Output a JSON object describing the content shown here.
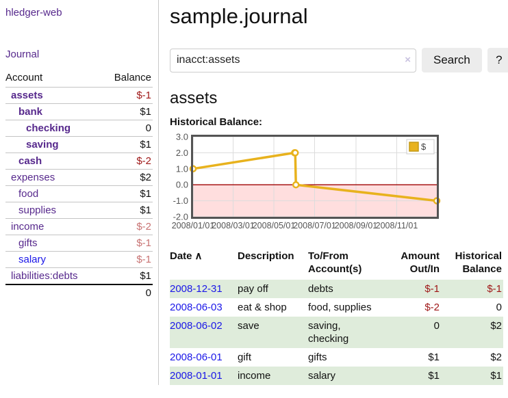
{
  "app": {
    "title": "hledger-web",
    "nav_journal": "Journal"
  },
  "colors": {
    "purple": "#56288c",
    "blue": "#1a16e8",
    "neg-strong": "#9e1616",
    "neg-soft": "#c87373",
    "row-green": "#dfecdb",
    "chart-line": "#e8b21d",
    "chart-neg": "#ffdede",
    "zero": "#a00000",
    "btn-bg": "#ececec"
  },
  "sidebar": {
    "headers": {
      "account": "Account",
      "balance": "Balance"
    },
    "accounts": [
      {
        "name": "assets",
        "balance": "$-1",
        "indent": 1,
        "bold": true,
        "neg": "strong"
      },
      {
        "name": "bank",
        "balance": "$1",
        "indent": 2,
        "bold": true,
        "neg": ""
      },
      {
        "name": "checking",
        "balance": "0",
        "indent": 3,
        "bold": true,
        "neg": ""
      },
      {
        "name": "saving",
        "balance": "$1",
        "indent": 3,
        "bold": true,
        "neg": ""
      },
      {
        "name": "cash",
        "balance": "$-2",
        "indent": 2,
        "bold": true,
        "neg": "strong"
      },
      {
        "name": "expenses",
        "balance": "$2",
        "indent": 1,
        "bold": false,
        "neg": ""
      },
      {
        "name": "food",
        "balance": "$1",
        "indent": 2,
        "bold": false,
        "neg": ""
      },
      {
        "name": "supplies",
        "balance": "$1",
        "indent": 2,
        "bold": false,
        "neg": ""
      },
      {
        "name": "income",
        "balance": "$-2",
        "indent": 1,
        "bold": false,
        "neg": "soft"
      },
      {
        "name": "gifts",
        "balance": "$-1",
        "indent": 2,
        "bold": false,
        "neg": "soft"
      },
      {
        "name": "salary",
        "balance": "$-1",
        "indent": 2,
        "bold": false,
        "neg": "soft",
        "link": "blue"
      },
      {
        "name": "liabilities:debts",
        "balance": "$1",
        "indent": 1,
        "bold": false,
        "neg": ""
      }
    ],
    "total": "0"
  },
  "main": {
    "title": "sample.journal",
    "search": {
      "value": "inacct:assets",
      "clear_icon": "×",
      "button": "Search",
      "help": "?"
    },
    "account_heading": "assets",
    "chart_label": "Historical Balance:"
  },
  "chart_data": {
    "type": "line",
    "title": "Historical Balance",
    "series": [
      {
        "name": "$",
        "x": [
          "2008-01-01",
          "2008-06-01",
          "2008-06-02",
          "2008-06-03",
          "2008-12-31"
        ],
        "y": [
          1,
          2,
          2,
          0,
          -1
        ]
      }
    ],
    "x_range": [
      "2008-01-01",
      "2008-12-31"
    ],
    "ylim": [
      -2,
      3
    ],
    "yticks": [
      3,
      2,
      1,
      0,
      -1,
      -2
    ],
    "xticks": [
      "2008/01/01",
      "2008/03/01",
      "2008/05/01",
      "2008/07/01",
      "2008/09/01",
      "2008/11/01"
    ],
    "legend": {
      "label": "$",
      "position": "top-right"
    },
    "grid": true,
    "line_color": "#e8b21d",
    "negative_fill": "#ffdede",
    "zero_line_color": "#a00000"
  },
  "register": {
    "columns": [
      {
        "label": "Date",
        "sort": "∧",
        "align": "left"
      },
      {
        "label": "Description",
        "align": "left"
      },
      {
        "label": "To/From Account(s)",
        "align": "left"
      },
      {
        "label": "Amount Out/In",
        "align": "right"
      },
      {
        "label": "Historical Balance",
        "align": "right"
      }
    ],
    "rows": [
      {
        "date": "2008-12-31",
        "description": "pay off",
        "accounts": "debts",
        "amount": "$-1",
        "amount_negative": true,
        "balance": "$-1",
        "balance_negative": true
      },
      {
        "date": "2008-06-03",
        "description": "eat & shop",
        "accounts": "food, supplies",
        "amount": "$-2",
        "amount_negative": true,
        "balance": "0",
        "balance_negative": false
      },
      {
        "date": "2008-06-02",
        "description": "save",
        "accounts": "saving, checking",
        "amount": "0",
        "amount_negative": false,
        "balance": "$2",
        "balance_negative": false
      },
      {
        "date": "2008-06-01",
        "description": "gift",
        "accounts": "gifts",
        "amount": "$1",
        "amount_negative": false,
        "balance": "$2",
        "balance_negative": false
      },
      {
        "date": "2008-01-01",
        "description": "income",
        "accounts": "salary",
        "amount": "$1",
        "amount_negative": false,
        "balance": "$1",
        "balance_negative": false
      }
    ]
  }
}
